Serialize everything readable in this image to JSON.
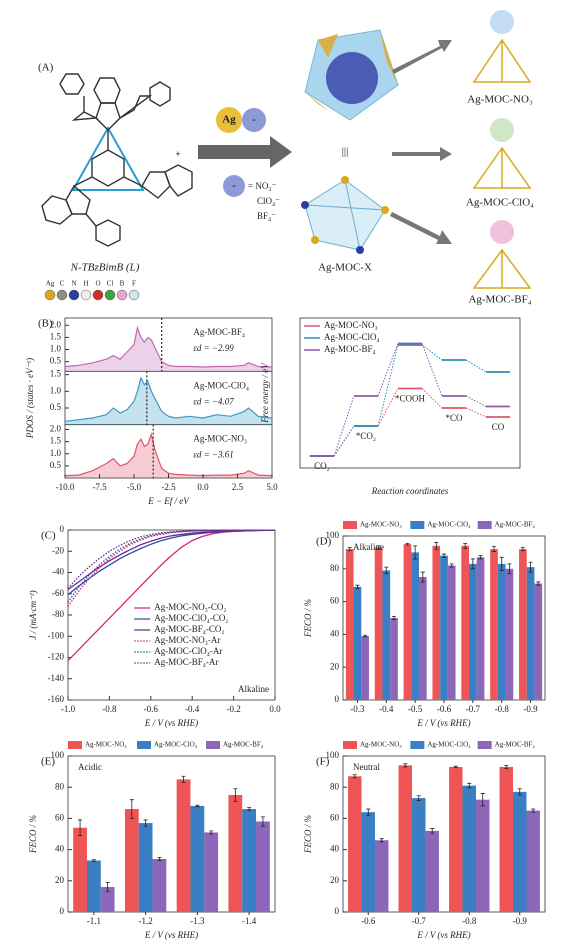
{
  "schematic": {
    "panel_label": "(A)",
    "ligand_label": "N-TBzBimB (L)",
    "ag_label": "Ag",
    "anion_symbol": "-",
    "anions": [
      "= NO₃⁻",
      "ClO₄⁻",
      "BF₄⁻"
    ],
    "equiv": "|||",
    "cage_label": "Ag-MOC-X",
    "products": [
      "Ag-MOC-NO₃",
      "Ag-MOC-ClO₄",
      "Ag-MOC-BF₄"
    ],
    "atoms": [
      {
        "symbol": "Ag",
        "color": "#d9a81e"
      },
      {
        "symbol": "C",
        "color": "#8c8c8c"
      },
      {
        "symbol": "N",
        "color": "#2b3f9e"
      },
      {
        "symbol": "H",
        "color": "#eeeeee"
      },
      {
        "symbol": "O",
        "color": "#d42a2a"
      },
      {
        "symbol": "Cl",
        "color": "#3aa53a"
      },
      {
        "symbol": "B",
        "color": "#e8a6cc"
      },
      {
        "symbol": "F",
        "color": "#cfe3e8"
      }
    ]
  },
  "chart_data": [
    {
      "type": "pdos",
      "panel_label": "(B)",
      "x_label": "E − Ef / eV",
      "y_label": "PDOS / (states · eV⁻¹)",
      "xlim": [
        -10,
        5
      ],
      "xticks": [
        {
          "value": -10,
          "label": "-10.0"
        },
        -7.5,
        {
          "value": -5,
          "label": "-5.0"
        },
        -2.5,
        {
          "value": 0,
          "label": "0.0"
        },
        2.5,
        {
          "value": 5,
          "label": "5.0"
        }
      ],
      "x": [
        -10,
        -9,
        -8,
        -7,
        -6.5,
        -6,
        -5.5,
        -5,
        -4.75,
        -4.5,
        -4.25,
        -4,
        -3.75,
        -3.5,
        -3,
        -2.5,
        -2,
        -1,
        0,
        1,
        2,
        3,
        3.3,
        4,
        5
      ],
      "panels": [
        {
          "name": "Ag-MOC-BF₄",
          "color": "#c06ab2",
          "ylim": [
            0.1,
            2.3
          ],
          "yticks": [
            0.5,
            {
              "value": 1,
              "label": "1.0"
            },
            1.5,
            {
              "value": 2,
              "label": "2.0"
            }
          ],
          "values": [
            0.3,
            0.35,
            0.45,
            0.6,
            0.75,
            0.6,
            0.9,
            1.2,
            1.9,
            1.5,
            1.3,
            1.5,
            1.4,
            1.1,
            0.5,
            0.35,
            0.3,
            0.3,
            0.28,
            0.3,
            0.3,
            0.35,
            0.45,
            0.3,
            0.28
          ],
          "d_band_center": -2.99,
          "d_band_label": "εd = −2.99"
        },
        {
          "name": "Ag-MOC-ClO₄",
          "color": "#3a9bc8",
          "ylim": [
            0,
            1.6
          ],
          "yticks": [
            0.5,
            {
              "value": 1,
              "label": "1.0"
            },
            1.5
          ],
          "values": [
            0.1,
            0.15,
            0.2,
            0.3,
            0.5,
            0.35,
            0.45,
            0.7,
            1.0,
            1.4,
            1.2,
            1.3,
            1.0,
            0.8,
            0.4,
            0.25,
            0.2,
            0.25,
            0.2,
            0.3,
            0.25,
            0.4,
            0.5,
            0.25,
            0.2
          ],
          "d_band_center": -4.07,
          "d_band_label": "εd = −4.07"
        },
        {
          "name": "Ag-MOC-NO₃",
          "color": "#e0566a",
          "ylim": [
            0,
            2.2
          ],
          "yticks": [
            0.5,
            {
              "value": 1,
              "label": "1.0"
            },
            1.5,
            {
              "value": 2,
              "label": "2.0"
            }
          ],
          "values": [
            0.1,
            0.12,
            0.3,
            0.6,
            0.8,
            0.5,
            0.6,
            0.9,
            1.4,
            1.6,
            1.3,
            1.4,
            1.8,
            1.2,
            0.4,
            0.2,
            0.15,
            0.12,
            0.1,
            0.12,
            0.12,
            0.2,
            0.3,
            0.12,
            0.1
          ],
          "d_band_center": -3.61,
          "d_band_label": "εd = −3.61"
        }
      ]
    },
    {
      "type": "energy_levels",
      "legend": "top-left",
      "x_label": "Reaction coordinates",
      "y_label": "Free energy / eV",
      "categories": [
        "CO₂",
        "*CO₂",
        "*COOH",
        "*CO",
        "CO"
      ],
      "ylim": [
        -0.4,
        4.6
      ],
      "series": [
        {
          "name": "Ag-MOC-NO₃",
          "color": "#e0566a",
          "values": [
            0,
            1.0,
            2.25,
            1.6,
            1.3
          ]
        },
        {
          "name": "Ag-MOC-ClO₄",
          "color": "#2a8fb8",
          "values": [
            0,
            1.0,
            3.7,
            3.2,
            2.8
          ]
        },
        {
          "name": "Ag-MOC-BF₄",
          "color": "#8a5bb0",
          "values": [
            0,
            2.0,
            3.75,
            2.0,
            1.65
          ]
        }
      ]
    },
    {
      "type": "line",
      "panel_label": "(C)",
      "annotation": "Alkaline",
      "legend": "lower-center",
      "x_label": "E / V (vs RHE)",
      "y_label": "J / (mA·cm⁻²)",
      "xlim": [
        -1,
        0
      ],
      "xticks": [
        {
          "value": -1,
          "label": "-1.0"
        },
        -0.8,
        -0.6,
        -0.4,
        -0.2,
        {
          "value": 0,
          "label": "0.0"
        }
      ],
      "ylim": [
        -160,
        0
      ],
      "yticks": [
        -160,
        -140,
        -120,
        -100,
        -80,
        -60,
        -40,
        -20,
        0
      ],
      "x": [
        -1,
        -0.95,
        -0.9,
        -0.85,
        -0.8,
        -0.75,
        -0.7,
        -0.65,
        -0.6,
        -0.55,
        -0.5,
        -0.45,
        -0.4,
        -0.35,
        -0.3,
        -0.25,
        -0.2,
        -0.15,
        -0.1,
        -0.05,
        0
      ],
      "series": [
        {
          "name": "Ag-MOC-NO₃-CO₂",
          "color": "#d6247a",
          "dash": false,
          "values": [
            -123,
            -113,
            -103,
            -93,
            -83,
            -73,
            -63,
            -53,
            -43,
            -33,
            -24,
            -16,
            -10,
            -6,
            -3.5,
            -2,
            -1.2,
            -0.8,
            -0.5,
            -0.3,
            -0.2
          ]
        },
        {
          "name": "Ag-MOC-ClO₄-CO₂",
          "color": "#2c4f9e",
          "dash": false,
          "values": [
            -61,
            -53,
            -46,
            -39,
            -33,
            -27,
            -22,
            -17.5,
            -13.5,
            -10,
            -7.5,
            -5.5,
            -4,
            -3,
            -2.2,
            -1.6,
            -1.2,
            -0.9,
            -0.6,
            -0.4,
            -0.3
          ]
        },
        {
          "name": "Ag-MOC-BF₄-CO₂",
          "color": "#6a2c91",
          "dash": false,
          "values": [
            -56,
            -49,
            -42,
            -35,
            -29,
            -23.5,
            -18.5,
            -14,
            -10.5,
            -7.5,
            -5.5,
            -4,
            -3,
            -2.2,
            -1.6,
            -1.2,
            -0.9,
            -0.7,
            -0.5,
            -0.3,
            -0.2
          ]
        },
        {
          "name": "Ag-MOC-NO₃-Ar",
          "color": "#d6247a",
          "dash": true,
          "values": [
            -72,
            -58,
            -46,
            -36,
            -27,
            -20,
            -14,
            -9.5,
            -6,
            -4,
            -2.5,
            -1.6,
            -1,
            -0.7,
            -0.5,
            -0.4,
            -0.3,
            -0.2,
            -0.2,
            -0.1,
            -0.1
          ]
        },
        {
          "name": "Ag-MOC-ClO₄-Ar",
          "color": "#2c4f9e",
          "dash": true,
          "values": [
            -68,
            -54,
            -43,
            -33,
            -25,
            -18,
            -12.5,
            -8.5,
            -5.5,
            -3.5,
            -2.2,
            -1.4,
            -0.9,
            -0.6,
            -0.4,
            -0.3,
            -0.2,
            -0.2,
            -0.1,
            -0.1,
            -0.1
          ]
        },
        {
          "name": "Ag-MOC-BF₄-Ar",
          "color": "#6a2c91",
          "dash": true,
          "values": [
            -55,
            -44,
            -35,
            -27,
            -20,
            -14.5,
            -10,
            -6.5,
            -4.2,
            -2.7,
            -1.7,
            -1.1,
            -0.7,
            -0.5,
            -0.4,
            -0.3,
            -0.2,
            -0.2,
            -0.1,
            -0.1,
            -0.1
          ]
        }
      ]
    },
    {
      "type": "grouped_bar",
      "panel_label": "(D)",
      "annotation": "Alkaline",
      "legend": "above",
      "x_label": "E / V (vs RHE)",
      "y_label": "FECO / %",
      "categories": [
        "-0.3",
        "-0.4",
        "-0.5",
        "-0.6",
        "-0.7",
        "-0.8",
        "-0.9"
      ],
      "ylim": [
        0,
        100
      ],
      "yticks": [
        0,
        20,
        40,
        60,
        80,
        100
      ],
      "series": [
        {
          "name": "Ag-MOC-NO₃",
          "color": "#ef5556",
          "values": [
            92,
            93,
            95,
            94,
            94,
            92,
            92
          ],
          "errors": [
            1,
            1,
            0.5,
            2,
            1.5,
            1.5,
            1
          ]
        },
        {
          "name": "Ag-MOC-ClO₄",
          "color": "#3a7fc4",
          "values": [
            69,
            79,
            90,
            88,
            83,
            83,
            81
          ],
          "errors": [
            1,
            2,
            4,
            1,
            3,
            4,
            3
          ]
        },
        {
          "name": "Ag-MOC-BF₄",
          "color": "#8c66b8",
          "values": [
            39,
            50,
            75,
            82,
            87,
            80,
            71
          ],
          "errors": [
            0.5,
            1,
            3,
            1,
            1,
            3,
            1
          ]
        }
      ]
    },
    {
      "type": "grouped_bar",
      "panel_label": "(E)",
      "annotation": "Acidic",
      "legend": "above",
      "x_label": "E / V (vs RHE)",
      "y_label": "FECO / %",
      "categories": [
        "-1.1",
        "-1.2",
        "-1.3",
        "-1.4"
      ],
      "ylim": [
        0,
        100
      ],
      "yticks": [
        0,
        20,
        40,
        60,
        80,
        100
      ],
      "series": [
        {
          "name": "Ag-MOC-NO₃",
          "color": "#ef5556",
          "values": [
            54,
            66,
            85,
            75
          ],
          "errors": [
            5,
            6,
            2,
            4
          ]
        },
        {
          "name": "Ag-MOC-ClO₄",
          "color": "#3a7fc4",
          "values": [
            33,
            57,
            68,
            66
          ],
          "errors": [
            0.5,
            2,
            0.5,
            1
          ]
        },
        {
          "name": "Ag-MOC-BF₄",
          "color": "#8c66b8",
          "values": [
            16,
            34,
            51,
            58
          ],
          "errors": [
            3,
            1,
            1,
            3
          ]
        }
      ]
    },
    {
      "type": "grouped_bar",
      "panel_label": "(F)",
      "annotation": "Neutral",
      "legend": "above",
      "x_label": "E / V (vs RHE)",
      "y_label": "FECO / %",
      "categories": [
        "-0.6",
        "-0.7",
        "-0.8",
        "-0.9"
      ],
      "ylim": [
        0,
        100
      ],
      "yticks": [
        0,
        20,
        40,
        60,
        80,
        100
      ],
      "series": [
        {
          "name": "Ag-MOC-NO₃",
          "color": "#ef5556",
          "values": [
            87,
            94,
            93,
            93
          ],
          "errors": [
            1,
            1,
            0.5,
            1
          ]
        },
        {
          "name": "Ag-MOC-ClO₄",
          "color": "#3a7fc4",
          "values": [
            64,
            73,
            81,
            77
          ],
          "errors": [
            2,
            1.5,
            1.5,
            2
          ]
        },
        {
          "name": "Ag-MOC-BF₄",
          "color": "#8c66b8",
          "values": [
            46,
            52,
            72,
            65
          ],
          "errors": [
            1,
            1.5,
            4,
            1
          ]
        }
      ]
    }
  ]
}
